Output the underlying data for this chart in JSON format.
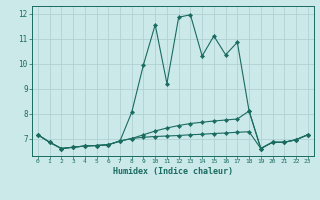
{
  "xlabel": "Humidex (Indice chaleur)",
  "background_color": "#cce9ea",
  "grid_color": "#b0d0d2",
  "line_color": "#1a6b60",
  "xlim": [
    -0.5,
    23.5
  ],
  "ylim": [
    6.3,
    12.3
  ],
  "xticks": [
    0,
    1,
    2,
    3,
    4,
    5,
    6,
    7,
    8,
    9,
    10,
    11,
    12,
    13,
    14,
    15,
    16,
    17,
    18,
    19,
    20,
    21,
    22,
    23
  ],
  "yticks": [
    7,
    8,
    9,
    10,
    11,
    12
  ],
  "line1_x": [
    0,
    1,
    2,
    3,
    4,
    5,
    6,
    7,
    8,
    9,
    10,
    11,
    12,
    13,
    14,
    15,
    16,
    17,
    18,
    19,
    20,
    21,
    22,
    23
  ],
  "line1_y": [
    7.15,
    6.85,
    6.6,
    6.65,
    6.7,
    6.72,
    6.75,
    6.9,
    8.05,
    9.95,
    11.55,
    9.2,
    11.85,
    11.95,
    10.3,
    11.1,
    10.35,
    10.85,
    8.1,
    6.6,
    6.85,
    6.85,
    6.95,
    7.15
  ],
  "line2_x": [
    0,
    1,
    2,
    3,
    4,
    5,
    6,
    7,
    8,
    9,
    10,
    11,
    12,
    13,
    14,
    15,
    16,
    17,
    18,
    19,
    20,
    21,
    22,
    23
  ],
  "line2_y": [
    7.15,
    6.85,
    6.6,
    6.65,
    6.7,
    6.72,
    6.75,
    6.9,
    7.0,
    7.15,
    7.3,
    7.42,
    7.52,
    7.6,
    7.65,
    7.7,
    7.74,
    7.78,
    8.1,
    6.6,
    6.85,
    6.85,
    6.95,
    7.15
  ],
  "line3_x": [
    0,
    1,
    2,
    3,
    4,
    5,
    6,
    7,
    8,
    9,
    10,
    11,
    12,
    13,
    14,
    15,
    16,
    17,
    18,
    19,
    20,
    21,
    22,
    23
  ],
  "line3_y": [
    7.15,
    6.85,
    6.6,
    6.65,
    6.7,
    6.72,
    6.75,
    6.9,
    7.0,
    7.05,
    7.08,
    7.1,
    7.12,
    7.15,
    7.17,
    7.2,
    7.22,
    7.25,
    7.27,
    6.6,
    6.85,
    6.85,
    6.95,
    7.15
  ]
}
